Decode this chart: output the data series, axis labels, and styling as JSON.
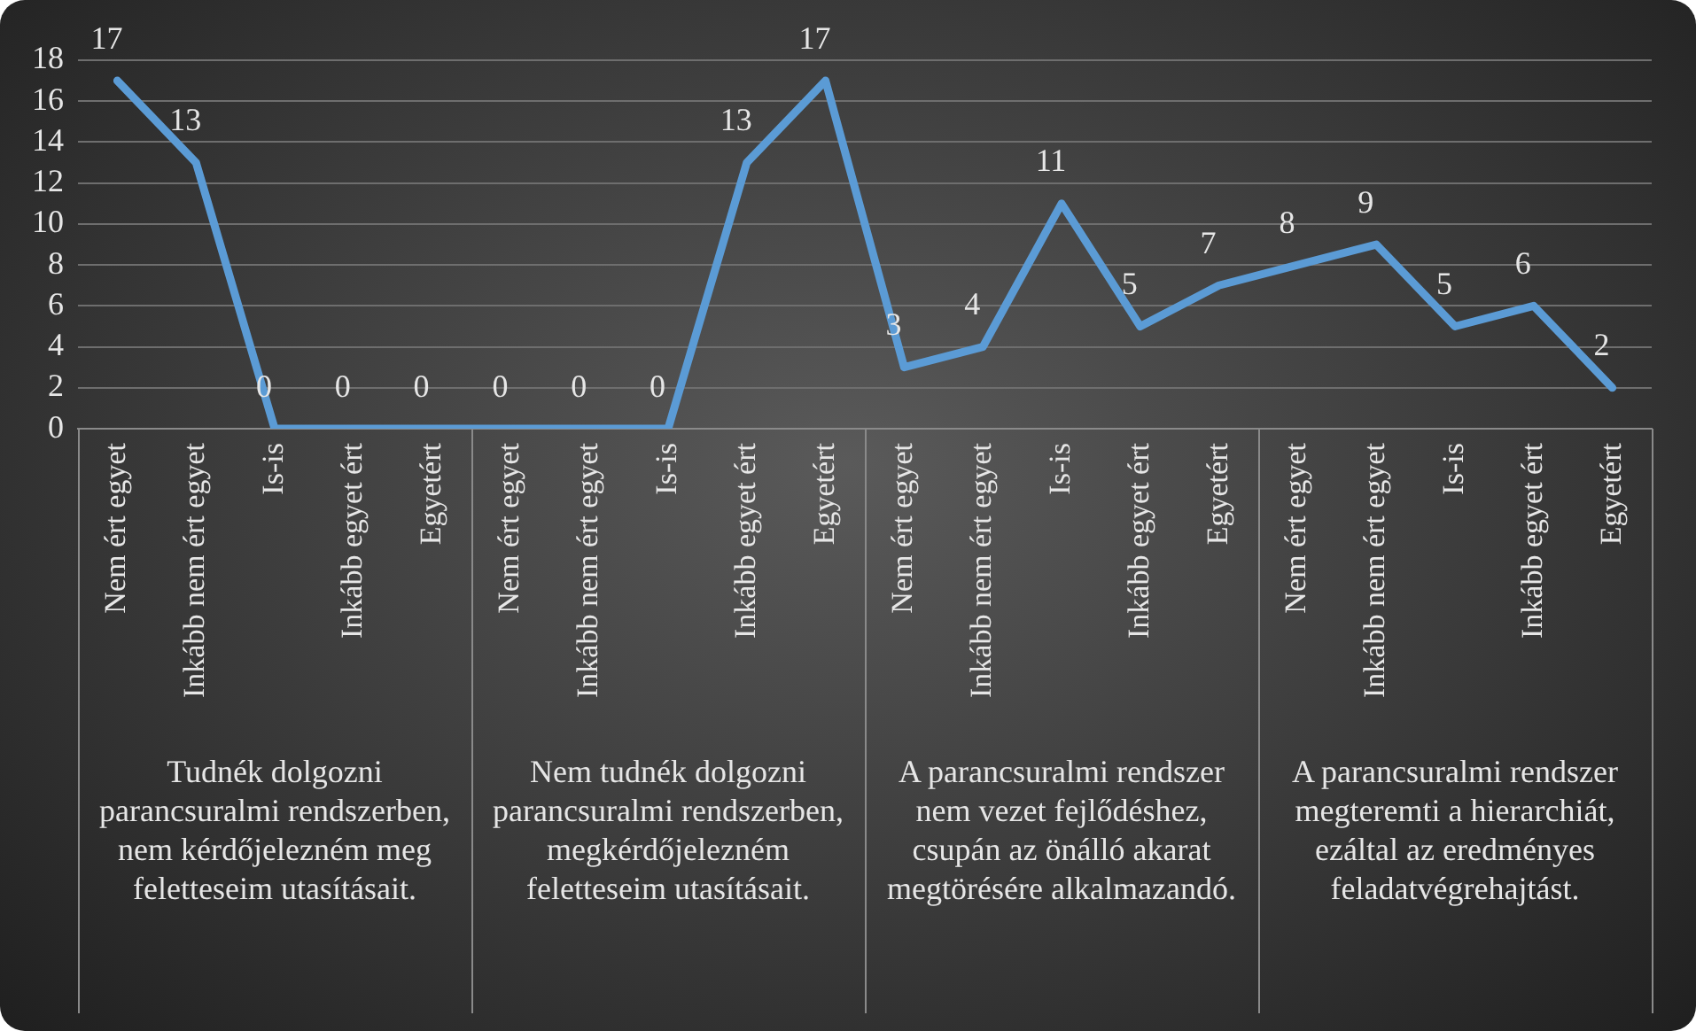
{
  "chart_data": {
    "type": "line",
    "categories": [
      "Nem ért egyet",
      "Inkább nem ért egyet",
      "Is-is",
      "Inkább egyet ért",
      "Egyetért",
      "Nem ért egyet",
      "Inkább nem ért egyet",
      "Is-is",
      "Inkább egyet ért",
      "Egyetért",
      "Nem ért egyet",
      "Inkább nem ért egyet",
      "Is-is",
      "Inkább egyet ért",
      "Egyetért",
      "Nem ért egyet",
      "Inkább nem ért egyet",
      "Is-is",
      "Inkább egyet ért",
      "Egyetért"
    ],
    "series": [
      {
        "color": "#5b9bd5",
        "values": [
          17,
          13,
          0,
          0,
          0,
          0,
          0,
          0,
          13,
          17,
          3,
          4,
          11,
          5,
          7,
          8,
          9,
          5,
          6,
          2
        ]
      }
    ],
    "annotations": [
      "Tudnék dolgozni parancsuralmi rendszerben, nem kérdőjelezném meg feletteseim utasításait.",
      "Nem tudnék dolgozni parancsuralmi rendszerben, megkérdőjelezném feletteseim utasításait.",
      "A parancsuralmi rendszer nem vezet fejlődéshez, csupán az önálló akarat megtörésére alkalmazandó.",
      "A parancsuralmi rendszer megteremti a hierarchiát, ezáltal az eredményes feladatvégrehajtást."
    ],
    "ylim": [
      0,
      18
    ],
    "yticks": [
      0,
      2,
      4,
      6,
      8,
      10,
      12,
      14,
      16,
      18
    ],
    "grid": "y",
    "legend": false,
    "marker": "none",
    "line_style": "solid",
    "data_labels": true
  }
}
